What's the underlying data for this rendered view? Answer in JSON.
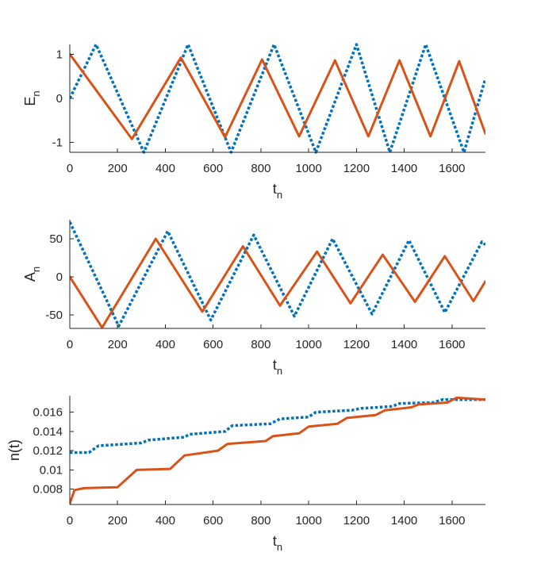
{
  "chart_data": [
    {
      "type": "line",
      "xlabel": "t",
      "xlabel_sub": "n",
      "ylabel": "E",
      "ylabel_sub": "n",
      "xlim": [
        0,
        1740
      ],
      "ylim": [
        -1.22,
        1.22
      ],
      "xticks": [
        0,
        200,
        400,
        600,
        800,
        1000,
        1200,
        1400,
        1600
      ],
      "xtick_labels": [
        "0",
        "200",
        "400",
        "600",
        "800",
        "1000",
        "1200",
        "1400",
        "1600"
      ],
      "yticks": [
        -1,
        0,
        1
      ],
      "ytick_labels": [
        "-1",
        "0",
        "1"
      ],
      "series": [
        {
          "name": "dotted-blue",
          "color": "#0072BD",
          "style": "dotted",
          "x": [
            0,
            110,
            310,
            495,
            675,
            855,
            1030,
            1200,
            1340,
            1490,
            1650,
            1740
          ],
          "y": [
            0,
            1.22,
            -1.22,
            1.22,
            -1.22,
            1.22,
            -1.22,
            1.22,
            -1.22,
            1.22,
            -1.22,
            0.45
          ]
        },
        {
          "name": "solid-orange",
          "color": "#D95319",
          "style": "solid",
          "x": [
            0,
            260,
            465,
            650,
            805,
            960,
            1110,
            1250,
            1380,
            1510,
            1630,
            1740
          ],
          "y": [
            1.0,
            -0.92,
            0.92,
            -0.88,
            0.88,
            -0.86,
            0.86,
            -0.86,
            0.86,
            -0.86,
            0.84,
            -0.8
          ]
        }
      ]
    },
    {
      "type": "line",
      "xlabel": "t",
      "xlabel_sub": "n",
      "ylabel": "A",
      "ylabel_sub": "n",
      "xlim": [
        0,
        1740
      ],
      "ylim": [
        -68,
        75
      ],
      "xticks": [
        0,
        200,
        400,
        600,
        800,
        1000,
        1200,
        1400,
        1600
      ],
      "xtick_labels": [
        "0",
        "200",
        "400",
        "600",
        "800",
        "1000",
        "1200",
        "1400",
        "1600"
      ],
      "yticks": [
        -50,
        0,
        50
      ],
      "ytick_labels": [
        "-50",
        "0",
        "50"
      ],
      "series": [
        {
          "name": "dotted-blue",
          "color": "#0072BD",
          "style": "dotted",
          "x": [
            0,
            205,
            410,
            590,
            770,
            940,
            1100,
            1265,
            1420,
            1570,
            1725,
            1740
          ],
          "y": [
            72,
            -65,
            60,
            -57,
            55,
            -52,
            50,
            -49,
            48,
            -47,
            46,
            42
          ]
        },
        {
          "name": "solid-orange",
          "color": "#D95319",
          "style": "solid",
          "x": [
            0,
            135,
            360,
            555,
            725,
            880,
            1035,
            1175,
            1310,
            1445,
            1570,
            1690,
            1740
          ],
          "y": [
            0,
            -67,
            50,
            -46,
            40,
            -38,
            33,
            -35,
            29,
            -33,
            27,
            -32,
            -6
          ]
        }
      ]
    },
    {
      "type": "line",
      "xlabel": "t",
      "xlabel_sub": "n",
      "ylabel": "n(t)",
      "ylabel_sub": "",
      "xlim": [
        0,
        1740
      ],
      "ylim": [
        0.0064,
        0.0177
      ],
      "xticks": [
        0,
        200,
        400,
        600,
        800,
        1000,
        1200,
        1400,
        1600
      ],
      "xtick_labels": [
        "0",
        "200",
        "400",
        "600",
        "800",
        "1000",
        "1200",
        "1400",
        "1600"
      ],
      "yticks": [
        0.008,
        0.01,
        0.012,
        0.014,
        0.016
      ],
      "ytick_labels": [
        "0.008",
        "0.01",
        "0.012",
        "0.014",
        "0.016"
      ],
      "series": [
        {
          "name": "dotted-blue",
          "color": "#0072BD",
          "style": "dotted",
          "x": [
            0,
            80,
            120,
            300,
            330,
            480,
            500,
            650,
            680,
            840,
            880,
            1000,
            1030,
            1180,
            1220,
            1350,
            1380,
            1520,
            1560,
            1740
          ],
          "y": [
            0.0118,
            0.0118,
            0.0125,
            0.0128,
            0.0131,
            0.0134,
            0.0137,
            0.014,
            0.0146,
            0.0148,
            0.0153,
            0.0155,
            0.016,
            0.0162,
            0.0164,
            0.0166,
            0.0169,
            0.017,
            0.0173,
            0.0173
          ]
        },
        {
          "name": "solid-orange",
          "color": "#D95319",
          "style": "solid",
          "x": [
            0,
            20,
            60,
            200,
            280,
            420,
            480,
            620,
            660,
            820,
            850,
            960,
            1000,
            1120,
            1160,
            1280,
            1320,
            1430,
            1460,
            1580,
            1620,
            1740
          ],
          "y": [
            0.0065,
            0.0079,
            0.0081,
            0.0082,
            0.01,
            0.0101,
            0.0115,
            0.012,
            0.0127,
            0.013,
            0.0135,
            0.0138,
            0.0145,
            0.0148,
            0.0154,
            0.0157,
            0.0162,
            0.0165,
            0.0168,
            0.017,
            0.0175,
            0.0173
          ]
        }
      ]
    }
  ]
}
